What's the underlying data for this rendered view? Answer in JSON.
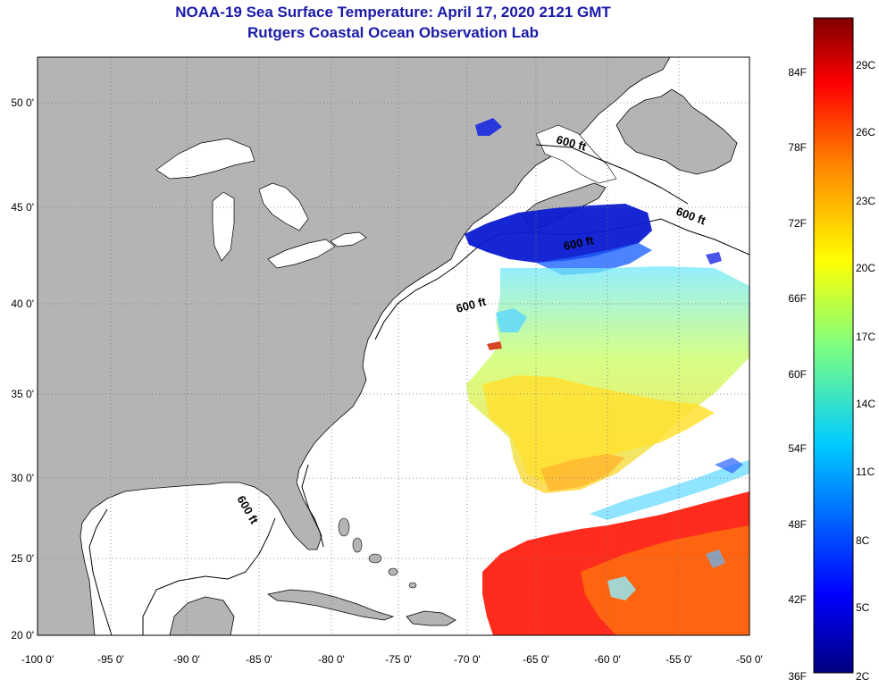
{
  "title": {
    "line1": "NOAA-19 Sea Surface Temperature:  April 17, 2020 2121 GMT",
    "line2": "Rutgers Coastal Ocean Observation Lab"
  },
  "map": {
    "lat_labels": [
      "50 0'",
      "45 0'",
      "40 0'",
      "35 0'",
      "30 0'",
      "25 0'",
      "20 0'"
    ],
    "lon_labels": [
      "-100 0'",
      "-95 0'",
      "-90 0'",
      "-85 0'",
      "-80 0'",
      "-75 0'",
      "-70 0'",
      "-65 0'",
      "-60 0'",
      "-55 0'",
      "-50 0'"
    ],
    "contour_label": "600 ft",
    "land_color": "#b4b4b4"
  },
  "colorbar": {
    "f_labels": [
      "84F",
      "78F",
      "72F",
      "66F",
      "60F",
      "54F",
      "48F",
      "42F",
      "36F"
    ],
    "c_labels": [
      "29C",
      "26C",
      "23C",
      "20C",
      "17C",
      "14C",
      "11C",
      "8C",
      "5C",
      "2C"
    ],
    "colors": [
      "#00007f",
      "#0000ff",
      "#0080ff",
      "#00ffff",
      "#80ff80",
      "#ffff00",
      "#ff8000",
      "#ff0000",
      "#7f0000"
    ]
  }
}
